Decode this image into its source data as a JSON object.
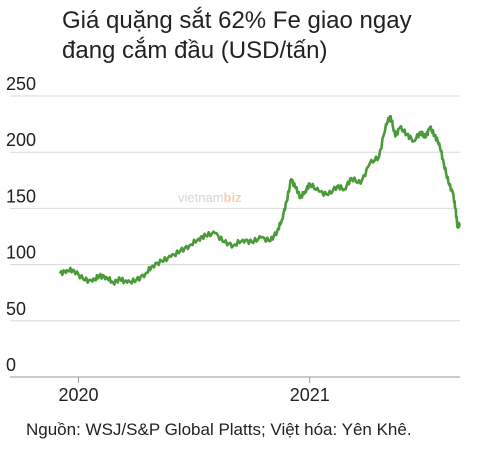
{
  "title": {
    "line1": "Giá quặng sắt 62% Fe giao ngay",
    "line2": "đang cắm đầu (USD/tấn)"
  },
  "source": "Nguồn: WSJ/S&P Global Platts; Việt hóa: Yên Khê.",
  "watermark": {
    "text": "vietnam",
    "suffix": "biz"
  },
  "colors": {
    "line": "#4a9a3a",
    "grid": "#d8d8d8",
    "axis": "#999999",
    "text": "#222222"
  },
  "chart_data": {
    "type": "line",
    "title": "Giá quặng sắt 62% Fe giao ngay đang cắm đầu (USD/tấn)",
    "xlabel": "",
    "ylabel": "",
    "ylim": [
      0,
      250
    ],
    "yticks": [
      "0",
      "50",
      "100",
      "150",
      "200",
      "250"
    ],
    "xticks": [
      {
        "label": "2020",
        "x": 2020.0
      },
      {
        "label": "2021",
        "x": 2021.0
      }
    ],
    "xlim": [
      2019.92,
      2021.65
    ],
    "grid": true,
    "series": [
      {
        "x": [
          2019.92,
          2019.95,
          2019.98,
          2020.02,
          2020.06,
          2020.09,
          2020.12,
          2020.15,
          2020.18,
          2020.21,
          2020.25,
          2020.29,
          2020.32,
          2020.36,
          2020.4,
          2020.44,
          2020.48,
          2020.52,
          2020.55,
          2020.59,
          2020.63,
          2020.67,
          2020.71,
          2020.75,
          2020.79,
          2020.83,
          2020.86,
          2020.88,
          2020.9,
          2020.92,
          2020.94,
          2020.96,
          2020.98,
          2021.0,
          2021.04,
          2021.08,
          2021.12,
          2021.15,
          2021.18,
          2021.22,
          2021.26,
          2021.3,
          2021.33,
          2021.35,
          2021.37,
          2021.39,
          2021.42,
          2021.45,
          2021.48,
          2021.5,
          2021.52,
          2021.54,
          2021.56,
          2021.58,
          2021.6,
          2021.62,
          2021.63,
          2021.64,
          2021.65
        ],
        "y": [
          92,
          95,
          95,
          87,
          85,
          90,
          89,
          84,
          87,
          84,
          86,
          92,
          99,
          103,
          107,
          112,
          117,
          123,
          126,
          128,
          120,
          117,
          122,
          120,
          124,
          121,
          130,
          140,
          156,
          176,
          168,
          160,
          165,
          172,
          165,
          162,
          170,
          167,
          177,
          172,
          190,
          196,
          225,
          232,
          214,
          222,
          216,
          210,
          218,
          213,
          222,
          215,
          208,
          190,
          173,
          163,
          150,
          133,
          137
        ]
      }
    ]
  }
}
